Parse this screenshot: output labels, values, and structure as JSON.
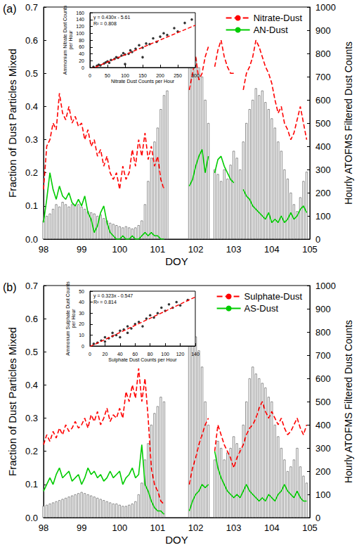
{
  "chart_data": [
    {
      "type": "combo",
      "annotation": "(a)",
      "xlabel": "DOY",
      "ylabel": "Fraction of Dust Particles Mixed",
      "y2label": "Hourly ATOFMS Filtered Dust Counts",
      "xlim": [
        98,
        105
      ],
      "xticks": [
        98,
        99,
        100,
        101,
        102,
        103,
        104,
        105
      ],
      "ylim": [
        0,
        0.7
      ],
      "yticks": [
        {
          "value": 0,
          "label": "0.0"
        },
        0.1,
        0.2,
        0.3,
        0.4,
        0.5,
        0.6,
        0.7
      ],
      "y2lim": [
        0,
        1000
      ],
      "y2ticks": [
        0,
        100,
        200,
        300,
        400,
        500,
        600,
        700,
        800,
        900,
        1000
      ],
      "grid": false,
      "legend": "upper right",
      "x": [
        98,
        98.083,
        98.167,
        98.25,
        98.333,
        98.417,
        98.5,
        98.583,
        98.667,
        98.75,
        98.833,
        98.917,
        99,
        99.083,
        99.167,
        99.25,
        99.333,
        99.417,
        99.5,
        99.583,
        99.667,
        99.75,
        99.833,
        99.917,
        100,
        100.083,
        100.167,
        100.25,
        100.333,
        100.417,
        100.5,
        100.583,
        100.667,
        100.75,
        100.833,
        100.917,
        101,
        101.083,
        101.167,
        101.25,
        101.333,
        101.417,
        101.5,
        101.583,
        101.667,
        101.75,
        101.833,
        101.917,
        102,
        102.083,
        102.167,
        102.25,
        102.333,
        102.417,
        102.5,
        102.583,
        102.667,
        102.75,
        102.833,
        102.917,
        103,
        103.083,
        103.167,
        103.25,
        103.333,
        103.417,
        103.5,
        103.583,
        103.667,
        103.75,
        103.833,
        103.917,
        104,
        104.083,
        104.167,
        104.25,
        104.333,
        104.417,
        104.5,
        104.583,
        104.667,
        104.75,
        104.833,
        104.917
      ],
      "series": [
        {
          "type": "bar",
          "axis": "y2",
          "color": "#ffffff",
          "values": [
            80,
            100,
            110,
            130,
            150,
            140,
            160,
            150,
            140,
            150,
            145,
            150,
            140,
            130,
            120,
            115,
            110,
            100,
            105,
            90,
            80,
            70,
            65,
            60,
            55,
            50,
            55,
            50,
            45,
            50,
            60,
            80,
            150,
            250,
            350,
            420,
            480,
            560,
            620,
            640,
            null,
            null,
            null,
            null,
            null,
            null,
            930,
            820,
            780,
            740,
            700,
            600,
            500,
            null,
            300,
            280,
            250,
            300,
            260,
            320,
            380,
            350,
            300,
            420,
            500,
            560,
            600,
            650,
            620,
            640,
            590,
            560,
            520,
            480,
            420,
            380,
            300,
            260,
            200,
            150,
            120,
            180,
            250,
            290
          ]
        },
        {
          "name": "Nitrate-Dust",
          "type": "line",
          "color": "#ff0000",
          "line_style": "dashed",
          "marker": "none",
          "values": [
            0.15,
            0.28,
            0.3,
            0.35,
            0.33,
            0.44,
            0.38,
            0.36,
            0.4,
            0.35,
            0.37,
            0.34,
            0.35,
            0.3,
            0.33,
            0.28,
            0.3,
            0.25,
            0.27,
            0.22,
            0.25,
            0.2,
            0.18,
            0.2,
            0.15,
            0.22,
            0.18,
            0.2,
            0.27,
            0.22,
            0.3,
            0.25,
            0.32,
            0.24,
            0.28,
            0.22,
            0.25,
            0.18,
            0.15,
            null,
            null,
            null,
            null,
            null,
            null,
            null,
            0.45,
            0.5,
            0.55,
            0.48,
            0.5,
            0.55,
            0.58,
            null,
            0.52,
            0.57,
            0.6,
            0.55,
            0.52,
            0.5,
            0.5,
            null,
            null,
            0.45,
            0.5,
            0.52,
            0.55,
            0.6,
            0.58,
            0.55,
            0.52,
            0.5,
            0.47,
            0.42,
            0.38,
            0.4,
            0.35,
            0.33,
            0.3,
            0.32,
            0.36,
            0.4,
            0.35,
            0.3
          ]
        },
        {
          "name": "AN-Dust",
          "type": "line",
          "color": "#00cc00",
          "line_style": "solid",
          "marker": "none",
          "values": [
            0.05,
            0.12,
            0.2,
            0.15,
            0.12,
            0.16,
            0.13,
            0.12,
            0.14,
            0.11,
            0.1,
            0.12,
            0.1,
            0.13,
            0.08,
            0.06,
            0.02,
            0.04,
            0.08,
            0.1,
            0.05,
            0.02,
            0.01,
            0.0,
            0.0,
            0.01,
            0.0,
            0.0,
            0.01,
            0.0,
            0.0,
            0.01,
            0.02,
            0.01,
            0.02,
            0.01,
            0.01,
            0.0,
            0.0,
            null,
            null,
            null,
            null,
            null,
            null,
            null,
            0.16,
            0.18,
            0.22,
            0.25,
            0.27,
            0.2,
            0.25,
            null,
            0.2,
            0.24,
            0.25,
            0.22,
            0.2,
            0.18,
            0.17,
            null,
            null,
            0.15,
            0.13,
            0.12,
            0.1,
            0.09,
            0.08,
            0.07,
            0.06,
            0.08,
            0.05,
            0.06,
            0.05,
            0.07,
            0.05,
            0.06,
            0.08,
            0.06,
            0.07,
            0.09,
            0.1,
            0.08
          ]
        }
      ],
      "inset": {
        "type": "scatter",
        "xlabel": "Nitrate Dust Counts per Hour",
        "ylabel": "Ammonium Nitrate Dust Counts\nper Hour",
        "annotations": [
          "y = 0.430x - 5.61",
          "R² = 0.808"
        ],
        "xlim": [
          0,
          300
        ],
        "xticks": [
          0,
          50,
          100,
          150,
          200,
          250,
          300
        ],
        "ylim": [
          0,
          160
        ],
        "yticks": [
          0,
          20,
          40,
          60,
          80,
          100,
          120,
          140,
          160
        ],
        "grid": false,
        "x": [
          10,
          20,
          25,
          30,
          40,
          45,
          50,
          55,
          60,
          70,
          75,
          80,
          90,
          95,
          100,
          100,
          110,
          115,
          120,
          130,
          140,
          150,
          150,
          160,
          170,
          180,
          190,
          200,
          210,
          220,
          240,
          250,
          270,
          290
        ],
        "series": [
          {
            "type": "scatter",
            "color": "#000000",
            "marker": "circle",
            "values": [
              2,
              5,
              8,
              6,
              12,
              15,
              18,
              14,
              22,
              25,
              30,
              28,
              35,
              42,
              38,
              10,
              40,
              50,
              45,
              55,
              65,
              58,
              30,
              70,
              68,
              85,
              75,
              90,
              100,
              95,
              115,
              105,
              130,
              140
            ]
          },
          {
            "type": "line",
            "color": "#ff0000",
            "line_style": "dashed",
            "marker": "none",
            "slope": 0.43,
            "intercept": -5.61
          }
        ]
      }
    },
    {
      "type": "combo",
      "annotation": "(b)",
      "xlabel": "DOY",
      "ylabel": "Fraction of Dust Particles Mixed",
      "y2label": "Hourly ATOFMS Filtered Dust Counts",
      "xlim": [
        98,
        105
      ],
      "xticks": [
        98,
        99,
        100,
        101,
        102,
        103,
        104,
        105
      ],
      "ylim": [
        0,
        0.7
      ],
      "yticks": [
        {
          "value": 0,
          "label": "0.0"
        },
        0.1,
        0.2,
        0.3,
        0.4,
        0.5,
        0.6,
        0.7
      ],
      "y2lim": [
        0,
        1000
      ],
      "y2ticks": [
        0,
        100,
        200,
        300,
        400,
        500,
        600,
        700,
        800,
        900,
        1000
      ],
      "grid": false,
      "legend": "upper right",
      "x": [
        98,
        98.083,
        98.167,
        98.25,
        98.333,
        98.417,
        98.5,
        98.583,
        98.667,
        98.75,
        98.833,
        98.917,
        99,
        99.083,
        99.167,
        99.25,
        99.333,
        99.417,
        99.5,
        99.583,
        99.667,
        99.75,
        99.833,
        99.917,
        100,
        100.083,
        100.167,
        100.25,
        100.333,
        100.417,
        100.5,
        100.583,
        100.667,
        100.75,
        100.833,
        100.917,
        101,
        101.083,
        101.167,
        101.25,
        101.333,
        101.417,
        101.5,
        101.583,
        101.667,
        101.75,
        101.833,
        101.917,
        102,
        102.083,
        102.167,
        102.25,
        102.333,
        102.417,
        102.5,
        102.583,
        102.667,
        102.75,
        102.833,
        102.917,
        103,
        103.083,
        103.167,
        103.25,
        103.333,
        103.417,
        103.5,
        103.583,
        103.667,
        103.75,
        103.833,
        103.917,
        104,
        104.083,
        104.167,
        104.25,
        104.333,
        104.417,
        104.5,
        104.583,
        104.667,
        104.75,
        104.833,
        104.917
      ],
      "series": [
        {
          "type": "bar",
          "axis": "y2",
          "color": "#ffffff",
          "values": [
            50,
            55,
            60,
            65,
            70,
            75,
            80,
            85,
            90,
            95,
            100,
            105,
            110,
            105,
            100,
            95,
            90,
            85,
            80,
            75,
            70,
            65,
            60,
            60,
            55,
            50,
            50,
            55,
            60,
            70,
            100,
            150,
            250,
            320,
            400,
            450,
            480,
            520,
            500,
            null,
            null,
            null,
            null,
            null,
            null,
            null,
            930,
            850,
            780,
            720,
            650,
            500,
            400,
            null,
            250,
            330,
            300,
            250,
            280,
            300,
            350,
            320,
            300,
            400,
            500,
            600,
            650,
            620,
            600,
            580,
            560,
            520,
            500,
            400,
            350,
            300,
            250,
            200,
            220,
            250,
            300,
            220,
            180,
            150
          ]
        },
        {
          "name": "Sulphate-Dust",
          "type": "line",
          "color": "#ff0000",
          "line_style": "dashed",
          "marker": "none",
          "values": [
            0.22,
            0.25,
            0.23,
            0.26,
            0.24,
            0.27,
            0.25,
            0.28,
            0.26,
            0.27,
            0.29,
            0.27,
            0.28,
            0.3,
            0.27,
            0.31,
            0.29,
            0.32,
            0.28,
            0.3,
            0.33,
            0.29,
            0.31,
            0.3,
            0.33,
            0.3,
            0.38,
            0.35,
            0.4,
            0.36,
            0.45,
            0.35,
            0.42,
            0.3,
            0.15,
            0.1,
            0.08,
            0.05,
            0.04,
            null,
            null,
            null,
            null,
            null,
            null,
            null,
            0.1,
            0.15,
            0.18,
            0.22,
            0.25,
            0.28,
            0.3,
            null,
            0.2,
            0.28,
            0.25,
            0.22,
            0.2,
            0.18,
            0.15,
            0.18,
            0.2,
            0.22,
            0.25,
            0.27,
            0.28,
            0.3,
            0.33,
            0.35,
            0.32,
            0.3,
            0.32,
            0.3,
            0.28,
            0.3,
            0.27,
            0.25,
            0.26,
            0.28,
            0.3,
            0.27,
            0.25,
            0.28
          ]
        },
        {
          "name": "AS-Dust",
          "type": "line",
          "color": "#00cc00",
          "line_style": "solid",
          "marker": "none",
          "values": [
            0.08,
            0.1,
            0.12,
            0.1,
            0.13,
            0.15,
            0.12,
            0.13,
            0.14,
            0.11,
            0.12,
            0.13,
            0.1,
            0.12,
            0.15,
            0.13,
            0.14,
            0.12,
            0.13,
            0.11,
            0.12,
            0.14,
            0.12,
            0.13,
            0.14,
            0.1,
            0.12,
            0.13,
            0.15,
            0.12,
            0.13,
            0.22,
            0.1,
            0.08,
            0.05,
            0.03,
            0.02,
            0.02,
            0.01,
            null,
            null,
            null,
            null,
            null,
            null,
            null,
            0.02,
            0.05,
            0.07,
            0.08,
            0.1,
            0.09,
            0.1,
            null,
            0.2,
            0.15,
            0.12,
            0.1,
            0.08,
            0.07,
            0.06,
            0.07,
            0.06,
            0.08,
            0.1,
            0.08,
            0.07,
            0.06,
            0.05,
            0.06,
            0.05,
            0.07,
            0.06,
            0.05,
            0.07,
            0.08,
            0.1,
            0.08,
            0.07,
            0.06,
            0.08,
            0.06,
            0.05,
            0.05
          ]
        }
      ],
      "inset": {
        "type": "scatter",
        "xlabel": "Sulphate Dust Counts per Hour",
        "ylabel": "Ammonium Sulphate Dust Counts\nper Hour",
        "annotations": [
          "y = 0.323x - 0.547",
          "R² = 0.814"
        ],
        "xlim": [
          0,
          140
        ],
        "xticks": [
          0,
          20,
          40,
          60,
          80,
          100,
          120,
          140
        ],
        "ylim": [
          0,
          50
        ],
        "yticks": [
          0,
          10,
          20,
          30,
          40,
          50
        ],
        "grid": false,
        "x": [
          5,
          10,
          15,
          20,
          20,
          25,
          30,
          30,
          35,
          40,
          40,
          45,
          50,
          50,
          55,
          60,
          65,
          70,
          75,
          80,
          85,
          90,
          95,
          100,
          105,
          110,
          115,
          120,
          130
        ],
        "series": [
          {
            "type": "scatter",
            "color": "#000000",
            "marker": "circle",
            "values": [
              2,
              3,
              5,
              4,
              8,
              7,
              9,
              12,
              10,
              14,
              8,
              15,
              12,
              18,
              16,
              20,
              22,
              18,
              25,
              28,
              26,
              30,
              35,
              32,
              38,
              35,
              40,
              37,
              42
            ]
          },
          {
            "type": "line",
            "color": "#ff0000",
            "line_style": "dashed",
            "marker": "none",
            "slope": 0.323,
            "intercept": -0.547
          }
        ]
      }
    }
  ]
}
